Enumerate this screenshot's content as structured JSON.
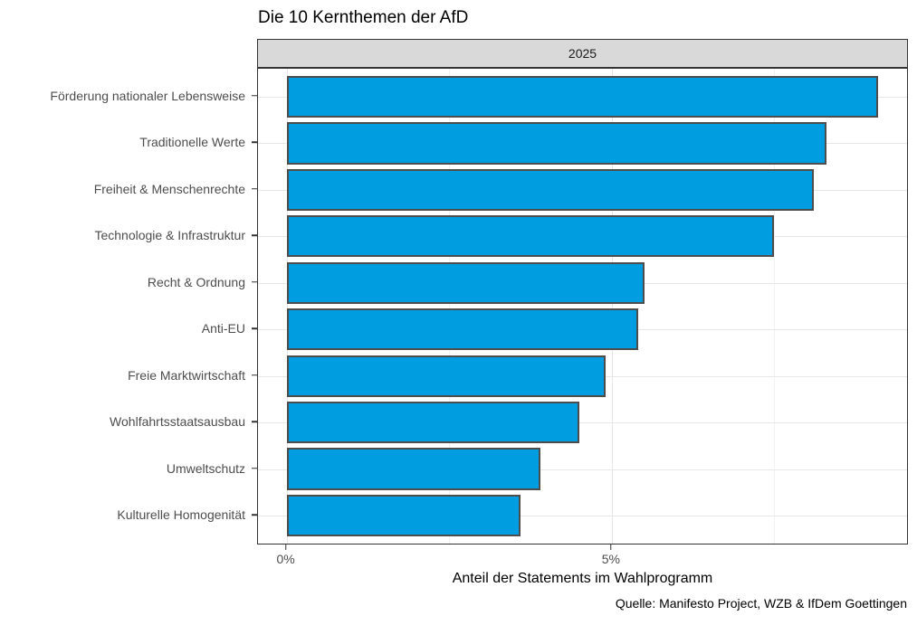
{
  "colors": {
    "bar_fill": "#009ee0",
    "bar_stroke": "#4d4d4d",
    "strip_fill": "#d9d9d9",
    "panel_border": "#333333",
    "grid_major": "#e7e7e7",
    "grid_minor": "#f2f2f2",
    "axis_text": "#4d4d4d",
    "tick_mark": "#333333",
    "title_text": "#000000"
  },
  "chart_data": {
    "type": "bar",
    "orientation": "horizontal",
    "title": "Die 10 Kernthemen der AfD",
    "facet": "2025",
    "xlabel": "Anteil der Statements im Wahlprogramm",
    "ylabel": "",
    "caption": "Quelle: Manifesto Project, WZB & IfDem Goettingen",
    "unit": "%",
    "categories": [
      "Förderung nationaler Lebensweise",
      "Traditionelle Werte",
      "Freiheit & Menschenrechte",
      "Technologie & Infrastruktur",
      "Recht & Ordnung",
      "Anti-EU",
      "Freie Marktwirtschaft",
      "Wohlfahrtsstaatsausbau",
      "Umweltschutz",
      "Kulturelle Homogenität"
    ],
    "values": [
      9.1,
      8.3,
      8.1,
      7.5,
      5.5,
      5.4,
      4.9,
      4.5,
      3.9,
      3.6
    ],
    "x_ticks": [
      {
        "label": "0%",
        "value": 0
      },
      {
        "label": "5%",
        "value": 5
      }
    ],
    "x_minor_ticks": [
      2.5,
      7.5
    ],
    "x_display_range": [
      -0.44,
      9.54
    ],
    "grid": true,
    "legend": "none"
  }
}
